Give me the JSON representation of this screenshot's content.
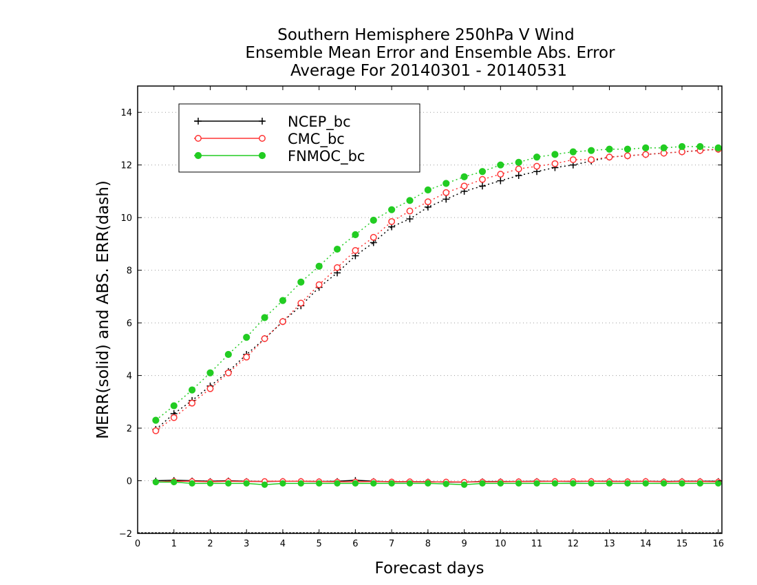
{
  "chart_data": {
    "type": "line",
    "title": [
      "Southern Hemisphere 250hPa V Wind",
      "Ensemble Mean Error and Ensemble Abs. Error",
      "Average For 20140301 - 20140531"
    ],
    "xlabel": "Forecast days",
    "ylabel": "MERR(solid) and ABS. ERR(dash)",
    "xlim": [
      0,
      16.1
    ],
    "ylim": [
      -2,
      15
    ],
    "xticks": [
      "0",
      "1",
      "2",
      "3",
      "4",
      "5",
      "6",
      "7",
      "8",
      "9",
      "10",
      "11",
      "12",
      "13",
      "14",
      "15",
      "16"
    ],
    "yticks": [
      "−2",
      "0",
      "2",
      "4",
      "6",
      "8",
      "10",
      "12",
      "14"
    ],
    "grid": "horizontal dotted",
    "legend_position": "top-left",
    "x": [
      0.5,
      1,
      1.5,
      2,
      2.5,
      3,
      3.5,
      4,
      4.5,
      5,
      5.5,
      6,
      6.5,
      7,
      7.5,
      8,
      8.5,
      9,
      9.5,
      10,
      10.5,
      11,
      11.5,
      12,
      12.5,
      13,
      13.5,
      14,
      14.5,
      15,
      15.5,
      16
    ],
    "series": [
      {
        "name": "NCEP_bc",
        "color": "#000000",
        "marker": "plus",
        "abs_error": [
          1.95,
          2.55,
          3.05,
          3.6,
          4.15,
          4.8,
          5.4,
          6.05,
          6.65,
          7.35,
          7.9,
          8.55,
          9.05,
          9.65,
          9.95,
          10.4,
          10.7,
          11.0,
          11.2,
          11.4,
          11.6,
          11.75,
          11.9,
          12.0,
          12.15,
          12.3,
          12.35,
          12.4,
          12.45,
          12.5,
          12.55,
          12.6
        ],
        "mean_error": [
          0.0,
          0.02,
          0.0,
          -0.02,
          0.0,
          -0.02,
          -0.03,
          -0.02,
          -0.02,
          -0.03,
          -0.02,
          0.02,
          -0.02,
          -0.04,
          -0.04,
          -0.04,
          -0.05,
          -0.05,
          -0.03,
          -0.03,
          -0.03,
          -0.02,
          -0.02,
          -0.03,
          -0.02,
          -0.02,
          -0.03,
          -0.02,
          -0.03,
          -0.02,
          -0.02,
          -0.02
        ]
      },
      {
        "name": "CMC_bc",
        "color": "#ff3333",
        "marker": "open-circle",
        "abs_error": [
          1.9,
          2.4,
          2.95,
          3.5,
          4.1,
          4.7,
          5.4,
          6.05,
          6.75,
          7.45,
          8.1,
          8.75,
          9.25,
          9.85,
          10.25,
          10.6,
          10.95,
          11.2,
          11.45,
          11.65,
          11.85,
          11.95,
          12.05,
          12.2,
          12.2,
          12.3,
          12.35,
          12.4,
          12.45,
          12.5,
          12.55,
          12.6
        ],
        "mean_error": [
          -0.05,
          -0.02,
          -0.02,
          -0.04,
          -0.02,
          -0.03,
          -0.02,
          -0.02,
          -0.02,
          -0.03,
          -0.04,
          -0.04,
          -0.03,
          -0.04,
          -0.03,
          -0.05,
          -0.04,
          -0.05,
          -0.04,
          -0.04,
          -0.03,
          -0.03,
          -0.02,
          -0.02,
          -0.02,
          -0.03,
          -0.03,
          -0.02,
          -0.04,
          -0.03,
          -0.03,
          -0.04
        ]
      },
      {
        "name": "FNMOC_bc",
        "color": "#22cc22",
        "marker": "filled-circle",
        "abs_error": [
          2.3,
          2.85,
          3.45,
          4.1,
          4.8,
          5.45,
          6.2,
          6.85,
          7.55,
          8.15,
          8.8,
          9.35,
          9.9,
          10.3,
          10.65,
          11.05,
          11.3,
          11.55,
          11.75,
          12.0,
          12.1,
          12.3,
          12.4,
          12.5,
          12.55,
          12.6,
          12.6,
          12.65,
          12.65,
          12.7,
          12.7,
          12.65
        ],
        "mean_error": [
          -0.05,
          -0.05,
          -0.1,
          -0.1,
          -0.1,
          -0.1,
          -0.15,
          -0.1,
          -0.1,
          -0.1,
          -0.1,
          -0.1,
          -0.1,
          -0.1,
          -0.1,
          -0.1,
          -0.12,
          -0.15,
          -0.1,
          -0.1,
          -0.1,
          -0.1,
          -0.1,
          -0.1,
          -0.1,
          -0.1,
          -0.1,
          -0.1,
          -0.1,
          -0.1,
          -0.1,
          -0.1
        ]
      }
    ]
  }
}
